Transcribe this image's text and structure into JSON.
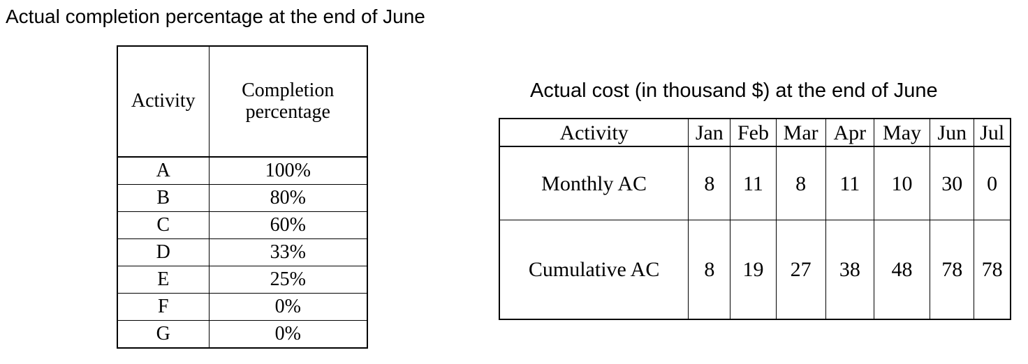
{
  "completion": {
    "title": "Actual completion percentage at the end of June",
    "headers": {
      "activity": "Activity",
      "completion_line1": "Completion",
      "completion_line2": "percentage"
    },
    "rows": [
      {
        "activity": "A",
        "percentage": "100%"
      },
      {
        "activity": "B",
        "percentage": "80%"
      },
      {
        "activity": "C",
        "percentage": "60%"
      },
      {
        "activity": "D",
        "percentage": "33%"
      },
      {
        "activity": "E",
        "percentage": "25%"
      },
      {
        "activity": "F",
        "percentage": "0%"
      },
      {
        "activity": "G",
        "percentage": "0%"
      }
    ]
  },
  "cost": {
    "title": "Actual cost (in thousand $) at the end of June",
    "headers": [
      "Activity",
      "Jan",
      "Feb",
      "Mar",
      "Apr",
      "May",
      "Jun",
      "Jul"
    ],
    "rows": [
      {
        "label": "Monthly AC",
        "values": [
          "8",
          "11",
          "8",
          "11",
          "10",
          "30",
          "0"
        ]
      },
      {
        "label": "Cumulative AC",
        "values": [
          "8",
          "19",
          "27",
          "38",
          "48",
          "78",
          "78"
        ]
      }
    ]
  }
}
